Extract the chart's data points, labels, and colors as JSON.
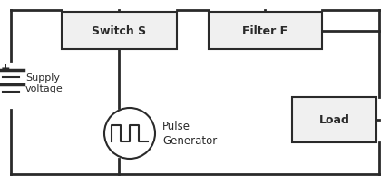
{
  "bg_color": "#ffffff",
  "line_color": "#2a2a2a",
  "box_color": "#f0f0f0",
  "box_edge_color": "#2a2a2a",
  "text_color": "#2a2a2a",
  "switch_label": "Switch S",
  "filter_label": "Filter F",
  "load_label": "Load",
  "pg_label_line1": "Pulse",
  "pg_label_line2": "Generator",
  "supply_label_line1": "Supply",
  "supply_label_line2": "voltage"
}
